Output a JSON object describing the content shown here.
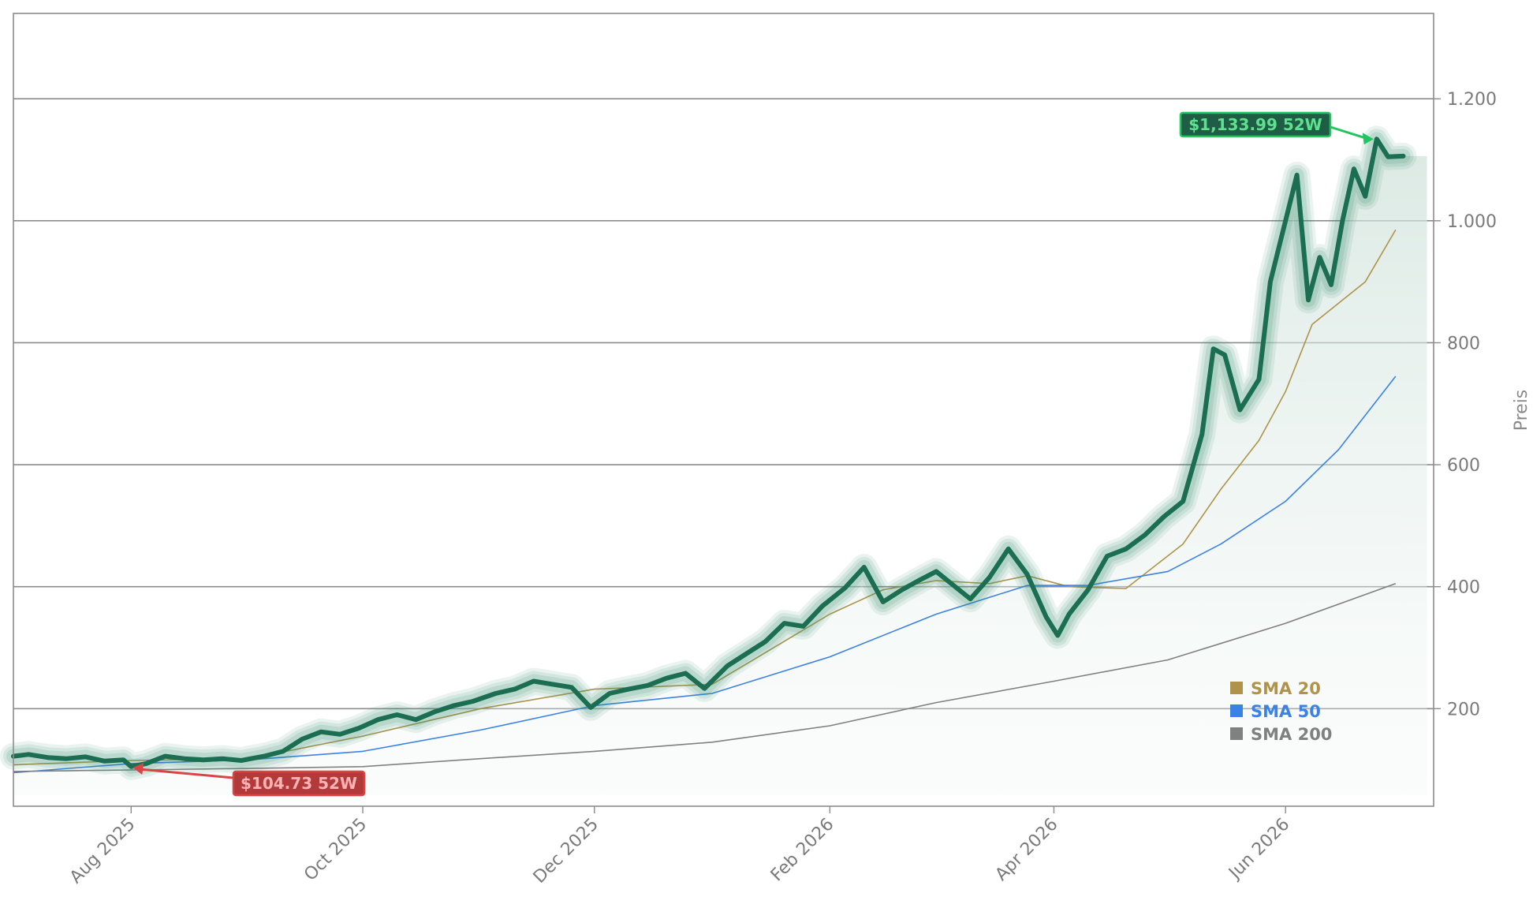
{
  "chart_data": {
    "type": "line",
    "title": "",
    "xlabel": "",
    "ylabel": "Preis",
    "x_range": [
      "2025-07-01",
      "2026-07-10"
    ],
    "ylim": [
      40,
      1340
    ],
    "y_ticks": [
      200,
      400,
      600,
      800,
      1000,
      1200
    ],
    "y_tick_labels": [
      "200",
      "400",
      "600",
      "800",
      "1.000",
      "1.200"
    ],
    "x_ticks": [
      "2025-08-01",
      "2025-10-01",
      "2025-12-01",
      "2026-02-01",
      "2026-04-01",
      "2026-06-01"
    ],
    "x_tick_labels": [
      "Aug 2025",
      "Oct 2025",
      "Dec 2025",
      "Feb 2026",
      "Apr 2026",
      "Jun 2026"
    ],
    "grid": "horizontal",
    "legend_position": "bottom-right",
    "colors": {
      "price": "#1b6e52",
      "price_glow": "#2e8b6a",
      "area_fill": "#d9e8e2",
      "sma20": "#b0934a",
      "sma50": "#3b82e6",
      "sma200": "#808080",
      "high_callout": "#22c55e",
      "low_callout": "#d94545"
    },
    "series": [
      {
        "name": "Price",
        "points": [
          [
            "2025-07-01",
            122
          ],
          [
            "2025-07-05",
            125
          ],
          [
            "2025-07-10",
            120
          ],
          [
            "2025-07-15",
            118
          ],
          [
            "2025-07-20",
            121
          ],
          [
            "2025-07-25",
            114
          ],
          [
            "2025-07-30",
            116
          ],
          [
            "2025-08-01",
            105
          ],
          [
            "2025-08-05",
            110
          ],
          [
            "2025-08-10",
            122
          ],
          [
            "2025-08-15",
            118
          ],
          [
            "2025-08-20",
            116
          ],
          [
            "2025-08-25",
            118
          ],
          [
            "2025-08-30",
            115
          ],
          [
            "2025-09-05",
            122
          ],
          [
            "2025-09-10",
            130
          ],
          [
            "2025-09-15",
            150
          ],
          [
            "2025-09-20",
            162
          ],
          [
            "2025-09-25",
            158
          ],
          [
            "2025-09-30",
            168
          ],
          [
            "2025-10-05",
            182
          ],
          [
            "2025-10-10",
            190
          ],
          [
            "2025-10-15",
            182
          ],
          [
            "2025-10-20",
            195
          ],
          [
            "2025-10-25",
            205
          ],
          [
            "2025-10-30",
            212
          ],
          [
            "2025-11-05",
            225
          ],
          [
            "2025-11-10",
            232
          ],
          [
            "2025-11-15",
            245
          ],
          [
            "2025-11-20",
            240
          ],
          [
            "2025-11-25",
            235
          ],
          [
            "2025-11-30",
            202
          ],
          [
            "2025-12-05",
            225
          ],
          [
            "2025-12-10",
            232
          ],
          [
            "2025-12-15",
            238
          ],
          [
            "2025-12-20",
            250
          ],
          [
            "2025-12-25",
            258
          ],
          [
            "2025-12-30",
            233
          ],
          [
            "2026-01-05",
            270
          ],
          [
            "2026-01-10",
            290
          ],
          [
            "2026-01-15",
            310
          ],
          [
            "2026-01-20",
            340
          ],
          [
            "2026-01-25",
            335
          ],
          [
            "2026-01-30",
            368
          ],
          [
            "2026-02-05",
            398
          ],
          [
            "2026-02-10",
            432
          ],
          [
            "2026-02-15",
            375
          ],
          [
            "2026-02-20",
            395
          ],
          [
            "2026-02-25",
            412
          ],
          [
            "2026-03-01",
            425
          ],
          [
            "2026-03-05",
            405
          ],
          [
            "2026-03-10",
            380
          ],
          [
            "2026-03-15",
            415
          ],
          [
            "2026-03-20",
            462
          ],
          [
            "2026-03-25",
            420
          ],
          [
            "2026-03-30",
            350
          ],
          [
            "2026-04-02",
            320
          ],
          [
            "2026-04-05",
            355
          ],
          [
            "2026-04-10",
            395
          ],
          [
            "2026-04-15",
            450
          ],
          [
            "2026-04-20",
            462
          ],
          [
            "2026-04-25",
            485
          ],
          [
            "2026-04-30",
            515
          ],
          [
            "2026-05-05",
            540
          ],
          [
            "2026-05-10",
            650
          ],
          [
            "2026-05-13",
            790
          ],
          [
            "2026-05-16",
            780
          ],
          [
            "2026-05-20",
            690
          ],
          [
            "2026-05-25",
            740
          ],
          [
            "2026-05-28",
            900
          ],
          [
            "2026-06-01",
            1000
          ],
          [
            "2026-06-04",
            1075
          ],
          [
            "2026-06-07",
            870
          ],
          [
            "2026-06-10",
            940
          ],
          [
            "2026-06-13",
            895
          ],
          [
            "2026-06-16",
            1000
          ],
          [
            "2026-06-19",
            1085
          ],
          [
            "2026-06-22",
            1040
          ],
          [
            "2026-06-25",
            1134
          ],
          [
            "2026-06-28",
            1105
          ],
          [
            "2026-07-02",
            1106
          ]
        ]
      },
      {
        "name": "SMA 20",
        "points": [
          [
            "2025-07-01",
            108
          ],
          [
            "2025-08-01",
            115
          ],
          [
            "2025-09-01",
            118
          ],
          [
            "2025-10-01",
            155
          ],
          [
            "2025-11-01",
            200
          ],
          [
            "2025-12-01",
            232
          ],
          [
            "2026-01-01",
            240
          ],
          [
            "2026-02-01",
            355
          ],
          [
            "2026-02-15",
            395
          ],
          [
            "2026-03-01",
            410
          ],
          [
            "2026-03-15",
            405
          ],
          [
            "2026-03-25",
            418
          ],
          [
            "2026-04-05",
            400
          ],
          [
            "2026-04-20",
            397
          ],
          [
            "2026-05-05",
            470
          ],
          [
            "2026-05-15",
            560
          ],
          [
            "2026-05-25",
            640
          ],
          [
            "2026-06-01",
            720
          ],
          [
            "2026-06-08",
            830
          ],
          [
            "2026-06-15",
            865
          ],
          [
            "2026-06-22",
            900
          ],
          [
            "2026-06-30",
            985
          ]
        ]
      },
      {
        "name": "SMA 50",
        "points": [
          [
            "2025-07-01",
            95
          ],
          [
            "2025-08-01",
            110
          ],
          [
            "2025-09-01",
            116
          ],
          [
            "2025-10-01",
            130
          ],
          [
            "2025-11-01",
            165
          ],
          [
            "2025-12-01",
            205
          ],
          [
            "2026-01-01",
            225
          ],
          [
            "2026-02-01",
            285
          ],
          [
            "2026-03-01",
            355
          ],
          [
            "2026-03-25",
            402
          ],
          [
            "2026-04-10",
            402
          ],
          [
            "2026-05-01",
            425
          ],
          [
            "2026-05-15",
            470
          ],
          [
            "2026-06-01",
            540
          ],
          [
            "2026-06-15",
            625
          ],
          [
            "2026-06-30",
            745
          ]
        ]
      },
      {
        "name": "SMA 200",
        "points": [
          [
            "2025-07-01",
            97
          ],
          [
            "2025-09-01",
            102
          ],
          [
            "2025-10-01",
            105
          ],
          [
            "2025-11-01",
            118
          ],
          [
            "2025-12-01",
            130
          ],
          [
            "2026-01-01",
            145
          ],
          [
            "2026-02-01",
            172
          ],
          [
            "2026-03-01",
            210
          ],
          [
            "2026-04-01",
            245
          ],
          [
            "2026-05-01",
            280
          ],
          [
            "2026-06-01",
            340
          ],
          [
            "2026-06-30",
            405
          ]
        ]
      }
    ],
    "annotations": [
      {
        "kind": "high",
        "label": "$1,133.99 52W",
        "x": "2026-06-25",
        "y": 1133.99
      },
      {
        "kind": "low",
        "label": "$104.73 52W",
        "x": "2025-08-01",
        "y": 104.73
      }
    ],
    "legend": [
      {
        "label": "SMA 20",
        "color": "#b0934a"
      },
      {
        "label": "SMA 50",
        "color": "#3b82e6"
      },
      {
        "label": "SMA 200",
        "color": "#808080"
      }
    ]
  }
}
